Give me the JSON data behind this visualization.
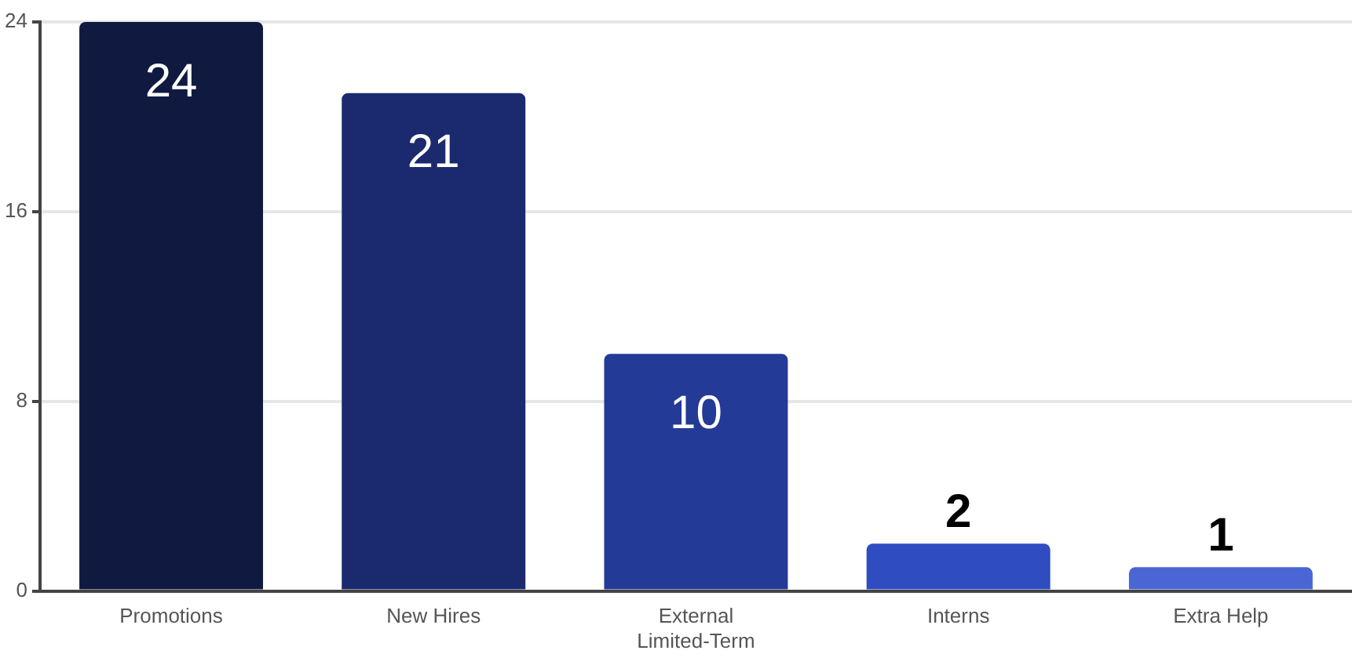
{
  "chart_data": {
    "type": "bar",
    "categories": [
      "Promotions",
      "New Hires",
      "External\nLimited-Term",
      "Interns",
      "Extra Help"
    ],
    "values": [
      24,
      21,
      10,
      2,
      1
    ],
    "colors": [
      "#101a40",
      "#1b2a6e",
      "#233a96",
      "#2f4cc0",
      "#4a66d4"
    ],
    "ylim": [
      0,
      24
    ],
    "yticks": [
      0,
      8,
      16,
      24
    ],
    "grid": "y",
    "data_labels": true,
    "legend": false
  }
}
